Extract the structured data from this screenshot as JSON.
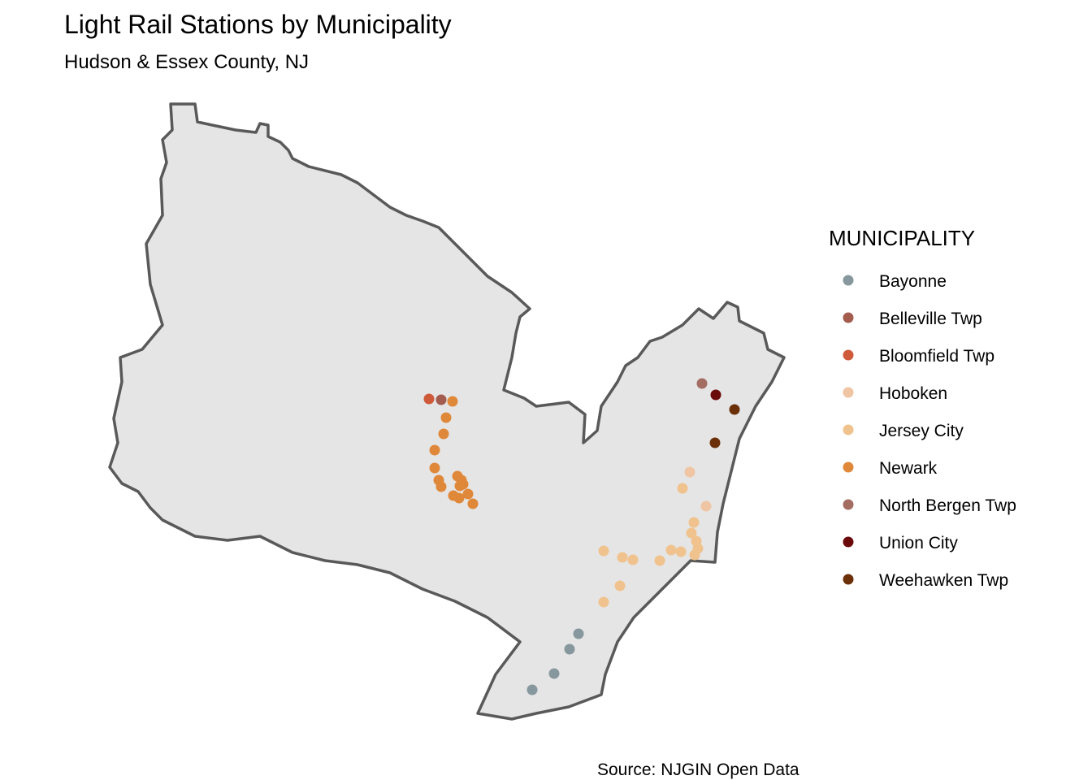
{
  "title": "Light Rail Stations by Municipality",
  "subtitle": "Hudson & Essex County, NJ",
  "caption": "Source: NJGIN Open Data",
  "legend": {
    "title": "MUNICIPALITY",
    "items": [
      {
        "label": "Bayonne",
        "color": "#86989E"
      },
      {
        "label": "Belleville Twp",
        "color": "#A35C4E"
      },
      {
        "label": "Bloomfield Twp",
        "color": "#CF5A3A"
      },
      {
        "label": "Hoboken",
        "color": "#EFC5A3"
      },
      {
        "label": "Jersey City",
        "color": "#F0C28D"
      },
      {
        "label": "Newark",
        "color": "#E0883A"
      },
      {
        "label": "North Bergen Twp",
        "color": "#A36D62"
      },
      {
        "label": "Union City",
        "color": "#6B0A0A"
      },
      {
        "label": "Weehawken Twp",
        "color": "#6B3008"
      }
    ]
  },
  "map_style": {
    "fill": "#E5E5E5",
    "stroke": "#595959"
  }
}
